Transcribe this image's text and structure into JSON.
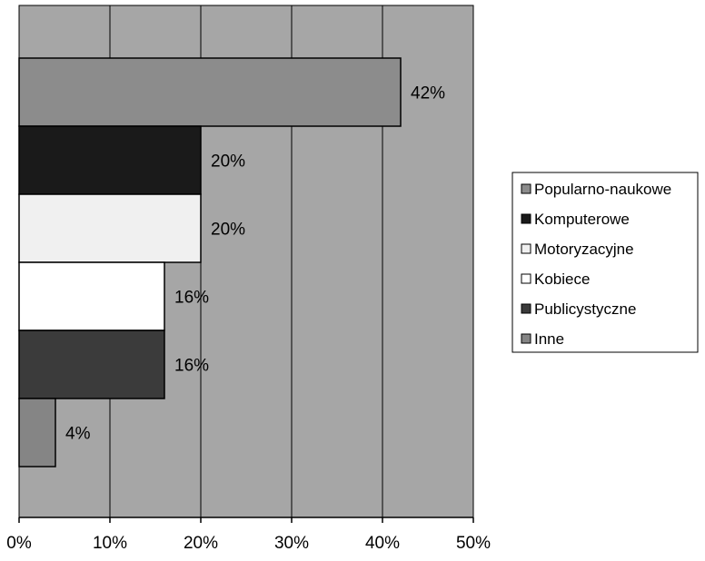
{
  "chart_data": {
    "type": "bar",
    "orientation": "horizontal",
    "categories": [
      "Popularno-naukowe",
      "Komputerowe",
      "Motoryzacyjne",
      "Kobiece",
      "Publicystyczne",
      "Inne"
    ],
    "values": [
      42,
      20,
      20,
      16,
      16,
      4
    ],
    "data_labels": [
      "42%",
      "20%",
      "20%",
      "16%",
      "16%",
      "4%"
    ],
    "bar_colors": [
      "#8c8c8c",
      "#1a1a1a",
      "#f0f0f0",
      "#ffffff",
      "#3b3b3b",
      "#858585"
    ],
    "xlim": [
      0,
      50
    ],
    "x_ticks": [
      0,
      10,
      20,
      30,
      40,
      50
    ],
    "x_tick_labels": [
      "0%",
      "10%",
      "20%",
      "30%",
      "40%",
      "50%"
    ],
    "grid": true,
    "plot_background": "#a6a6a6",
    "legend": {
      "position": "right",
      "entries": [
        "Popularno-naukowe",
        "Komputerowe",
        "Motoryzacyjne",
        "Kobiece",
        "Publicystyczne",
        "Inne"
      ]
    },
    "title": "",
    "xlabel": "",
    "ylabel": ""
  }
}
